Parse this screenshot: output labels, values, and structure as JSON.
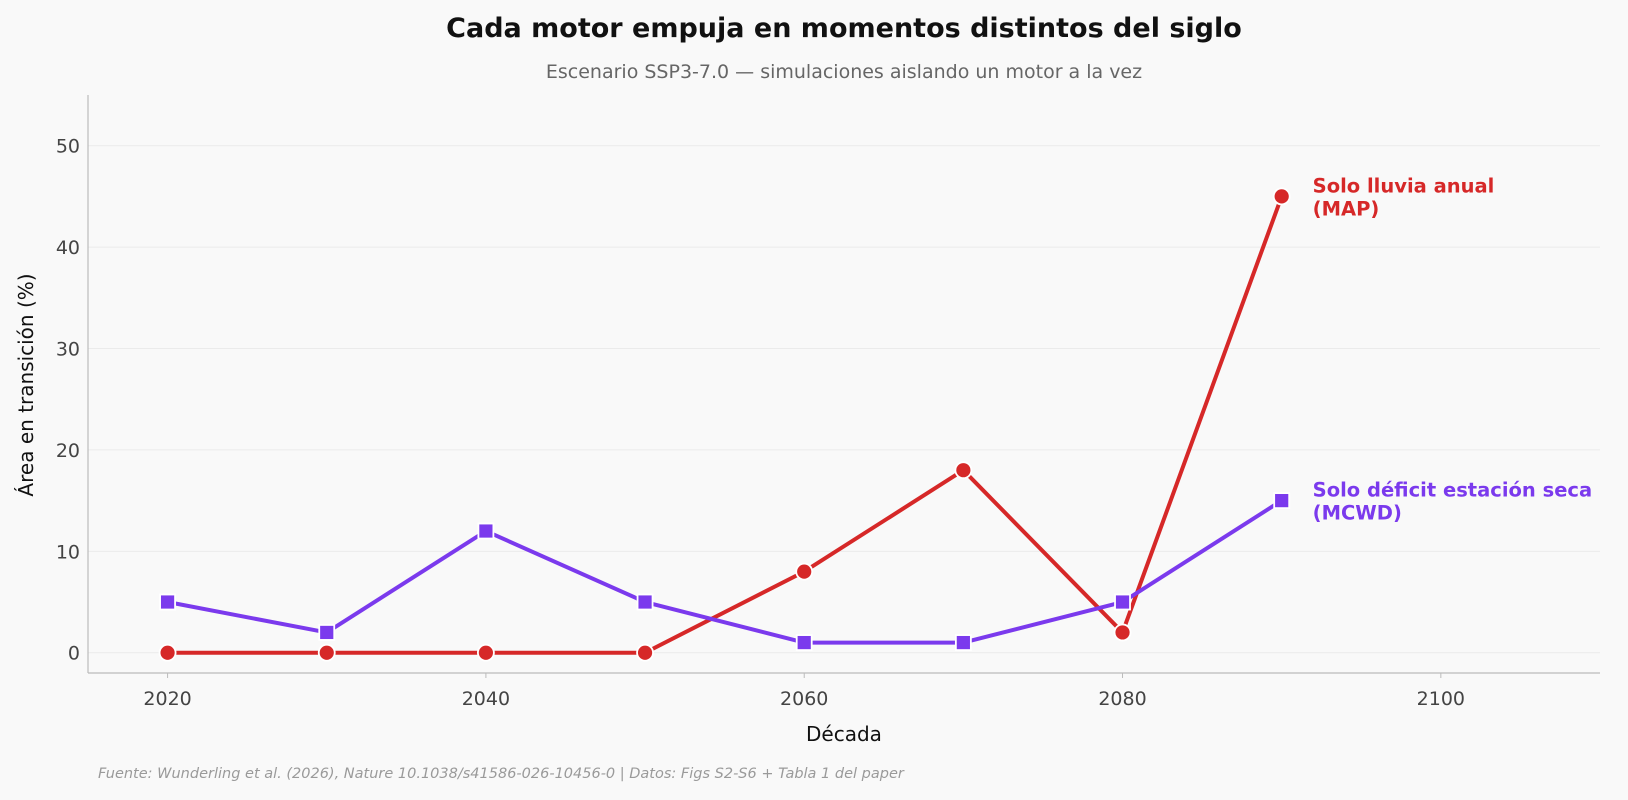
{
  "colors": {
    "background": "#f9f9f9",
    "map": "#d62828",
    "mcwd": "#7b3aed",
    "grid": "#ebebeb",
    "axis": "#bbbbbb"
  },
  "source": "Fuente: Wunderling et al. (2026), Nature 10.1038/s41586-026-10456-0 | Datos: Figs S2-S6 + Tabla 1 del paper",
  "chart_data": {
    "type": "line",
    "title": "Cada motor empuja en momentos distintos del siglo",
    "subtitle": "Escenario SSP3-7.0 — simulaciones aislando un motor a la vez",
    "xlabel": "Década",
    "ylabel": "Área en transición (%)",
    "xlim": [
      2015,
      2110
    ],
    "ylim": [
      -2,
      55
    ],
    "xticks": [
      2020,
      2040,
      2060,
      2080,
      2100
    ],
    "yticks": [
      0,
      10,
      20,
      30,
      40,
      50
    ],
    "grid": "horizontal",
    "x": [
      2020,
      2030,
      2040,
      2050,
      2060,
      2070,
      2080,
      2090
    ],
    "series": [
      {
        "key": "map",
        "label_line1": "Solo lluvia anual",
        "label_line2": "(MAP)",
        "color": "#d62828",
        "marker": "circle",
        "values": [
          0,
          0,
          0,
          0,
          8,
          18,
          2,
          45
        ]
      },
      {
        "key": "mcwd",
        "label_line1": "Solo déficit estación seca",
        "label_line2": "(MCWD)",
        "color": "#7b3aed",
        "marker": "square",
        "values": [
          5,
          2,
          12,
          5,
          1,
          1,
          5,
          15
        ]
      }
    ]
  }
}
